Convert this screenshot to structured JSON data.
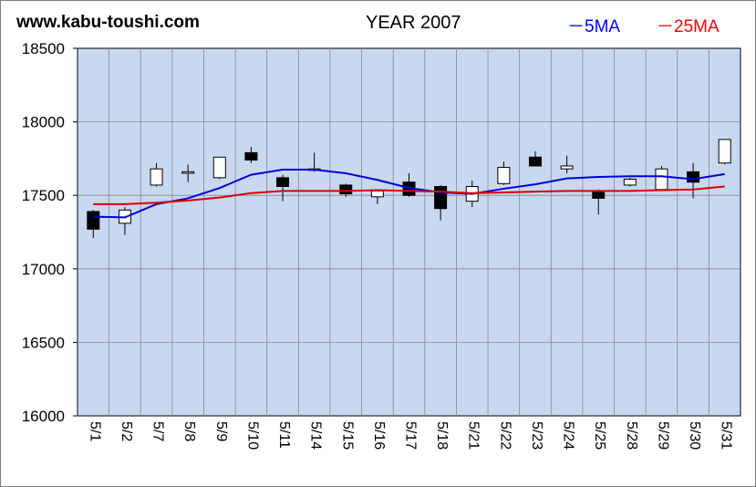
{
  "header": {
    "site": "www.kabu-toushi.com",
    "title": "YEAR 2007"
  },
  "chart_data": {
    "type": "candlestick",
    "title": "YEAR 2007",
    "ylim": [
      16000,
      18500
    ],
    "yticks": [
      16000,
      16500,
      17000,
      17500,
      18000,
      18500
    ],
    "grid": true,
    "legend": "top-right",
    "colors": {
      "background": "#c8d8f0",
      "ma5": "#0000dd",
      "ma25": "#dd0000",
      "grid": "#888888"
    },
    "series_ma": [
      {
        "name": "5MA",
        "label": "－5MA",
        "color": "#0000dd",
        "values": [
          17355,
          17350,
          17440,
          17480,
          17550,
          17640,
          17675,
          17675,
          17650,
          17605,
          17550,
          17520,
          17510,
          17545,
          17575,
          17615,
          17625,
          17630,
          17630,
          17610,
          17645
        ]
      },
      {
        "name": "25MA",
        "label": "－25MA",
        "color": "#dd0000",
        "values": [
          17440,
          17440,
          17450,
          17465,
          17485,
          17515,
          17530,
          17530,
          17530,
          17535,
          17530,
          17525,
          17515,
          17520,
          17525,
          17530,
          17530,
          17530,
          17535,
          17540,
          17560
        ]
      }
    ],
    "candles": [
      {
        "date": "5/1",
        "open": 17390,
        "high": 17400,
        "low": 17210,
        "close": 17270
      },
      {
        "date": "5/2",
        "open": 17310,
        "high": 17420,
        "low": 17230,
        "close": 17400
      },
      {
        "date": "5/7",
        "open": 17570,
        "high": 17720,
        "low": 17560,
        "close": 17680
      },
      {
        "date": "5/8",
        "open": 17650,
        "high": 17710,
        "low": 17590,
        "close": 17660
      },
      {
        "date": "5/9",
        "open": 17620,
        "high": 17760,
        "low": 17610,
        "close": 17760
      },
      {
        "date": "5/10",
        "open": 17790,
        "high": 17830,
        "low": 17720,
        "close": 17740
      },
      {
        "date": "5/11",
        "open": 17620,
        "high": 17640,
        "low": 17460,
        "close": 17560
      },
      {
        "date": "5/14",
        "open": 17680,
        "high": 17790,
        "low": 17660,
        "close": 17670
      },
      {
        "date": "5/15",
        "open": 17570,
        "high": 17580,
        "low": 17490,
        "close": 17510
      },
      {
        "date": "5/16",
        "open": 17490,
        "high": 17530,
        "low": 17440,
        "close": 17530
      },
      {
        "date": "5/17",
        "open": 17590,
        "high": 17650,
        "low": 17490,
        "close": 17500
      },
      {
        "date": "5/18",
        "open": 17560,
        "high": 17570,
        "low": 17330,
        "close": 17410
      },
      {
        "date": "5/21",
        "open": 17460,
        "high": 17600,
        "low": 17420,
        "close": 17560
      },
      {
        "date": "5/22",
        "open": 17580,
        "high": 17730,
        "low": 17570,
        "close": 17690
      },
      {
        "date": "5/23",
        "open": 17760,
        "high": 17800,
        "low": 17700,
        "close": 17700
      },
      {
        "date": "5/24",
        "open": 17680,
        "high": 17770,
        "low": 17650,
        "close": 17700
      },
      {
        "date": "5/25",
        "open": 17520,
        "high": 17540,
        "low": 17370,
        "close": 17480
      },
      {
        "date": "5/28",
        "open": 17570,
        "high": 17620,
        "low": 17560,
        "close": 17610
      },
      {
        "date": "5/29",
        "open": 17540,
        "high": 17700,
        "low": 17530,
        "close": 17680
      },
      {
        "date": "5/30",
        "open": 17660,
        "high": 17720,
        "low": 17480,
        "close": 17590
      },
      {
        "date": "5/31",
        "open": 17720,
        "high": 17880,
        "low": 17710,
        "close": 17880
      }
    ]
  }
}
